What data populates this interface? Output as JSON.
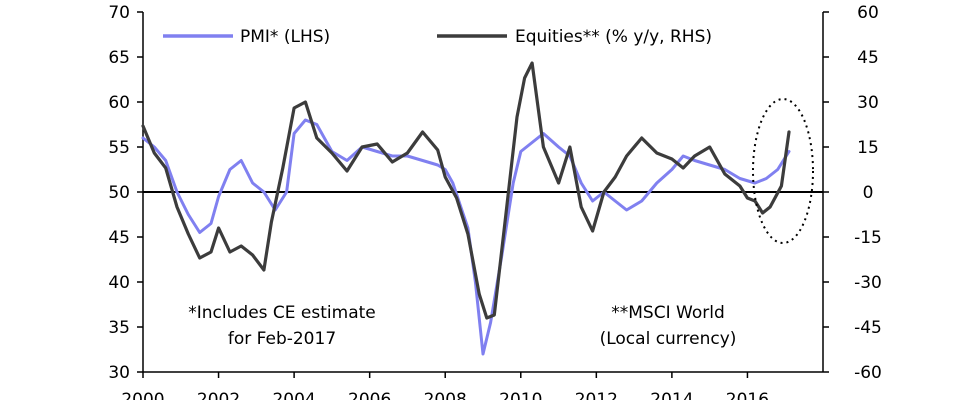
{
  "chart_data": {
    "type": "line",
    "title": "",
    "xlabel": "",
    "ylabel_left": "",
    "ylabel_right": "",
    "x_range": [
      2000,
      2018
    ],
    "x_ticks": [
      "2000",
      "2002",
      "2004",
      "2006",
      "2008",
      "2010",
      "2012",
      "2014",
      "2016"
    ],
    "y_left": {
      "range": [
        30,
        70
      ],
      "ticks": [
        "30",
        "35",
        "40",
        "45",
        "50",
        "55",
        "60",
        "65",
        "70"
      ]
    },
    "y_right": {
      "range": [
        -60,
        60
      ],
      "ticks": [
        "-60",
        "-45",
        "-30",
        "-15",
        "0",
        "15",
        "30",
        "45",
        "60"
      ]
    },
    "zero_line_left": 50,
    "grid": false,
    "legend_position": "top",
    "series": [
      {
        "name": "PMI* (LHS)",
        "axis": "left",
        "color": "#8080f0",
        "x": [
          2000.0,
          2000.3,
          2000.6,
          2000.9,
          2001.2,
          2001.5,
          2001.8,
          2002.0,
          2002.3,
          2002.6,
          2002.9,
          2003.2,
          2003.5,
          2003.8,
          2004.0,
          2004.3,
          2004.6,
          2005.0,
          2005.4,
          2005.8,
          2006.2,
          2006.6,
          2007.0,
          2007.4,
          2007.8,
          2008.0,
          2008.2,
          2008.4,
          2008.6,
          2008.8,
          2009.0,
          2009.2,
          2009.5,
          2009.8,
          2010.0,
          2010.3,
          2010.6,
          2011.0,
          2011.3,
          2011.6,
          2011.9,
          2012.2,
          2012.5,
          2012.8,
          2013.2,
          2013.6,
          2014.0,
          2014.3,
          2014.6,
          2015.0,
          2015.4,
          2015.8,
          2016.2,
          2016.5,
          2016.8,
          2017.1
        ],
        "values": [
          56.0,
          55.0,
          53.5,
          50.0,
          47.5,
          45.5,
          46.5,
          49.5,
          52.5,
          53.5,
          51.0,
          50.0,
          48.0,
          50.0,
          56.5,
          58.0,
          57.5,
          54.5,
          53.5,
          55.0,
          54.5,
          54.0,
          54.0,
          53.5,
          53.0,
          52.5,
          51.0,
          48.5,
          46.0,
          40.0,
          32.0,
          35.5,
          43.0,
          51.0,
          54.5,
          55.5,
          56.5,
          55.0,
          54.0,
          51.0,
          49.0,
          50.0,
          49.0,
          48.0,
          49.0,
          51.0,
          52.5,
          54.0,
          53.5,
          53.0,
          52.5,
          51.5,
          51.0,
          51.5,
          52.5,
          54.5
        ]
      },
      {
        "name": "Equities** (% y/y, RHS)",
        "axis": "right",
        "color": "#3c3c3c",
        "x": [
          2000.0,
          2000.3,
          2000.6,
          2000.9,
          2001.2,
          2001.5,
          2001.8,
          2002.0,
          2002.3,
          2002.6,
          2002.9,
          2003.2,
          2003.4,
          2003.7,
          2004.0,
          2004.3,
          2004.6,
          2005.0,
          2005.4,
          2005.8,
          2006.2,
          2006.6,
          2007.0,
          2007.4,
          2007.8,
          2008.0,
          2008.3,
          2008.6,
          2008.9,
          2009.1,
          2009.3,
          2009.6,
          2009.9,
          2010.1,
          2010.3,
          2010.6,
          2011.0,
          2011.3,
          2011.6,
          2011.9,
          2012.2,
          2012.5,
          2012.8,
          2013.2,
          2013.6,
          2014.0,
          2014.3,
          2014.6,
          2015.0,
          2015.4,
          2015.8,
          2016.0,
          2016.2,
          2016.4,
          2016.6,
          2016.9,
          2017.1
        ],
        "values": [
          22.0,
          13.0,
          8.0,
          -5.0,
          -14.0,
          -22.0,
          -20.0,
          -12.0,
          -20.0,
          -18.0,
          -21.0,
          -26.0,
          -10.0,
          8.0,
          28.0,
          30.0,
          18.0,
          13.0,
          7.0,
          15.0,
          16.0,
          10.0,
          13.0,
          20.0,
          14.0,
          5.0,
          -2.0,
          -14.0,
          -34.0,
          -42.0,
          -41.0,
          -8.0,
          25.0,
          38.0,
          43.0,
          15.0,
          3.0,
          15.0,
          -5.0,
          -13.0,
          0.0,
          5.0,
          12.0,
          18.0,
          13.0,
          11.0,
          8.0,
          12.0,
          15.0,
          6.0,
          2.0,
          -2.0,
          -3.0,
          -7.0,
          -5.0,
          2.0,
          20.0
        ]
      }
    ]
  },
  "annotations": {
    "note_left_line1": "*Includes CE estimate",
    "note_left_line2": "for Feb-2017",
    "note_right_line1": "**MSCI World",
    "note_right_line2": "(Local currency)"
  }
}
